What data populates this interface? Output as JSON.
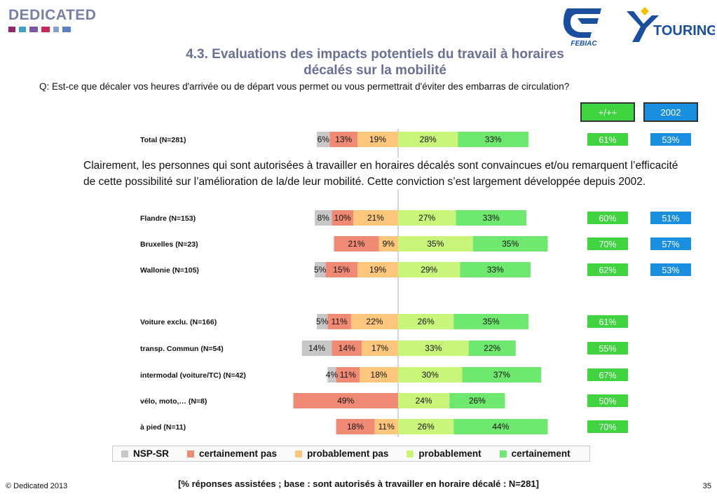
{
  "header": {
    "logo_text": "DEDICATED",
    "logo_colors": [
      "#8b2a6a",
      "#43a0c8",
      "#7a5aa6",
      "#c62a5a",
      "#8aa0cc",
      "#5b7fc0"
    ],
    "febiac_text": "FEBIAC",
    "touring_text": "TOURING",
    "title_line1": "4.3. Evaluations des impacts potentiels du travail à horaires",
    "title_line2": "décalés sur la mobilité",
    "question": "Q: Est-ce que décaler vos heures d'arrivée ou de départ vous permet ou vous permettrait d'éviter des embarras de circulation?"
  },
  "comment": "Clairement, les personnes qui sont autorisées à travailler en horaires décalés sont convaincues et/ou remarquent l’efficacité de cette possibilité sur l’amélioration de la/de leur mobilité. Cette conviction s’est largement développée depuis 2002.",
  "columns": {
    "plus_label": "+/++",
    "year_label": "2002",
    "plus_color": "#3fd33f",
    "year_color": "#1a8fe0"
  },
  "colors": {
    "nsp": "#c8c8c8",
    "certainement_pas": "#f08a74",
    "probablement_pas": "#fcc77c",
    "probablement": "#c9f57a",
    "certainement": "#6ee86e"
  },
  "chart_data": {
    "type": "bar",
    "stacked": "diverging",
    "series_names": [
      "NSP-SR",
      "certainement pas",
      "probablement pas",
      "probablement",
      "certainement"
    ],
    "rows": [
      {
        "label": "Total (N=281)",
        "values": [
          6,
          13,
          19,
          28,
          33
        ],
        "plus": "61%",
        "y2002": "53%"
      },
      {
        "label": "Flandre (N=153)",
        "values": [
          8,
          10,
          21,
          27,
          33
        ],
        "plus": "60%",
        "y2002": "51%"
      },
      {
        "label": "Bruxelles (N=23)",
        "values": [
          null,
          21,
          9,
          35,
          35
        ],
        "plus": "70%",
        "y2002": "57%"
      },
      {
        "label": "Wallonie (N=105)",
        "values": [
          5,
          15,
          19,
          29,
          33
        ],
        "plus": "62%",
        "y2002": "53%"
      },
      {
        "label": "Voiture exclu. (N=166)",
        "values": [
          5,
          11,
          22,
          26,
          35
        ],
        "plus": "61%",
        "y2002": null
      },
      {
        "label": "transp. Commun (N=54)",
        "values": [
          14,
          14,
          17,
          33,
          22
        ],
        "plus": "55%",
        "y2002": null
      },
      {
        "label": "intermodal (voiture/TC) (N=42)",
        "values": [
          4,
          11,
          18,
          30,
          37
        ],
        "plus": "67%",
        "y2002": null
      },
      {
        "label": "vélo, moto,… (N=8)",
        "values": [
          null,
          49,
          null,
          24,
          26
        ],
        "plus": "50%",
        "y2002": null
      },
      {
        "label": "à pied (N=11)",
        "values": [
          null,
          18,
          11,
          26,
          44
        ],
        "plus": "70%",
        "y2002": null
      }
    ]
  },
  "legend": [
    {
      "label": "NSP-SR",
      "key": "nsp"
    },
    {
      "label": "certainement pas",
      "key": "certainement_pas"
    },
    {
      "label": "probablement pas",
      "key": "probablement_pas"
    },
    {
      "label": "probablement",
      "key": "probablement"
    },
    {
      "label": "certainement",
      "key": "certainement"
    }
  ],
  "footer": {
    "note": "[% réponses assistées ; base : sont autorisés à travailler en horaire décalé : N=281]",
    "copyright": "© Dedicated 2013",
    "page": "35"
  }
}
